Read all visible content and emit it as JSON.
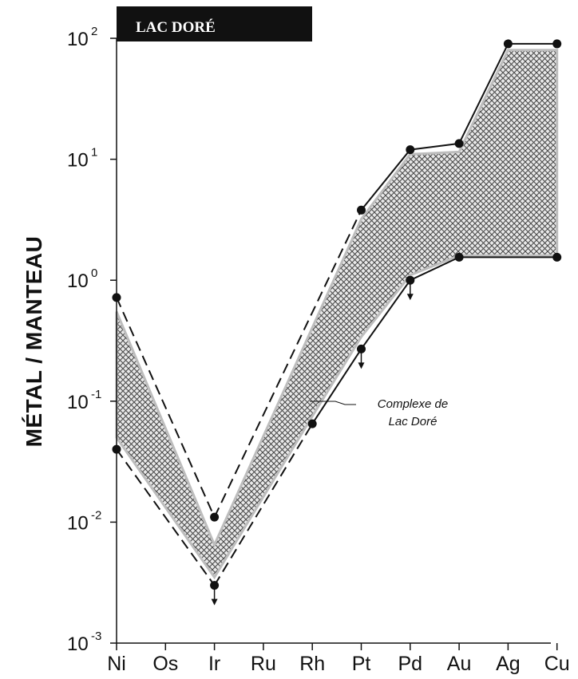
{
  "chart_data": {
    "type": "line",
    "title": "LAC DORÉ",
    "xlabel": "",
    "ylabel": "MÉTAL / MANTEAU",
    "yscale": "log",
    "ylim": [
      0.001,
      100
    ],
    "ytick_labels": [
      {
        "value": 0.001,
        "base": "10",
        "exp": "-3"
      },
      {
        "value": 0.01,
        "base": "10",
        "exp": "-2"
      },
      {
        "value": 0.1,
        "base": "10",
        "exp": "-1"
      },
      {
        "value": 1,
        "base": "10",
        "exp": "0"
      },
      {
        "value": 10,
        "base": "10",
        "exp": "1"
      },
      {
        "value": 100,
        "base": "10",
        "exp": "2"
      }
    ],
    "categories": [
      "Ni",
      "Os",
      "Ir",
      "Ru",
      "Rh",
      "Pt",
      "Pd",
      "Au",
      "Ag",
      "Cu"
    ],
    "series": [
      {
        "role": "upper",
        "points": [
          {
            "x": "Ni",
            "y": 0.72
          },
          {
            "x": "Ir",
            "y": 0.011
          },
          {
            "x": "Pt",
            "y": 3.8
          },
          {
            "x": "Pd",
            "y": 12
          },
          {
            "x": "Au",
            "y": 13.5
          },
          {
            "x": "Ag",
            "y": 90
          },
          {
            "x": "Cu",
            "y": 90
          }
        ]
      },
      {
        "role": "lower",
        "points": [
          {
            "x": "Ni",
            "y": 0.04
          },
          {
            "x": "Ir",
            "y": 0.003,
            "upper_limit": true
          },
          {
            "x": "Rh",
            "y": 0.065
          },
          {
            "x": "Pt",
            "y": 0.27,
            "upper_limit": true
          },
          {
            "x": "Pd",
            "y": 1.0,
            "upper_limit": true
          },
          {
            "x": "Au",
            "y": 1.55
          },
          {
            "x": "Cu",
            "y": 1.55
          }
        ]
      }
    ],
    "shaded_band": {
      "label": "Complexe de Lac Doré",
      "upper": [
        0.55,
        null,
        0.0065,
        null,
        null,
        3.2,
        11,
        11.5,
        80,
        80
      ],
      "lower": [
        0.05,
        null,
        0.0035,
        null,
        0.075,
        0.34,
        1.1,
        1.6,
        1.6,
        1.6
      ]
    },
    "annotation_lines": [
      "Complexe de",
      "Lac Doré"
    ],
    "grid": false,
    "legend": "none",
    "colors": {
      "ink": "#111111",
      "band_hatch": "#555555",
      "title_bg": "#111111",
      "title_fg": "#ffffff"
    }
  }
}
